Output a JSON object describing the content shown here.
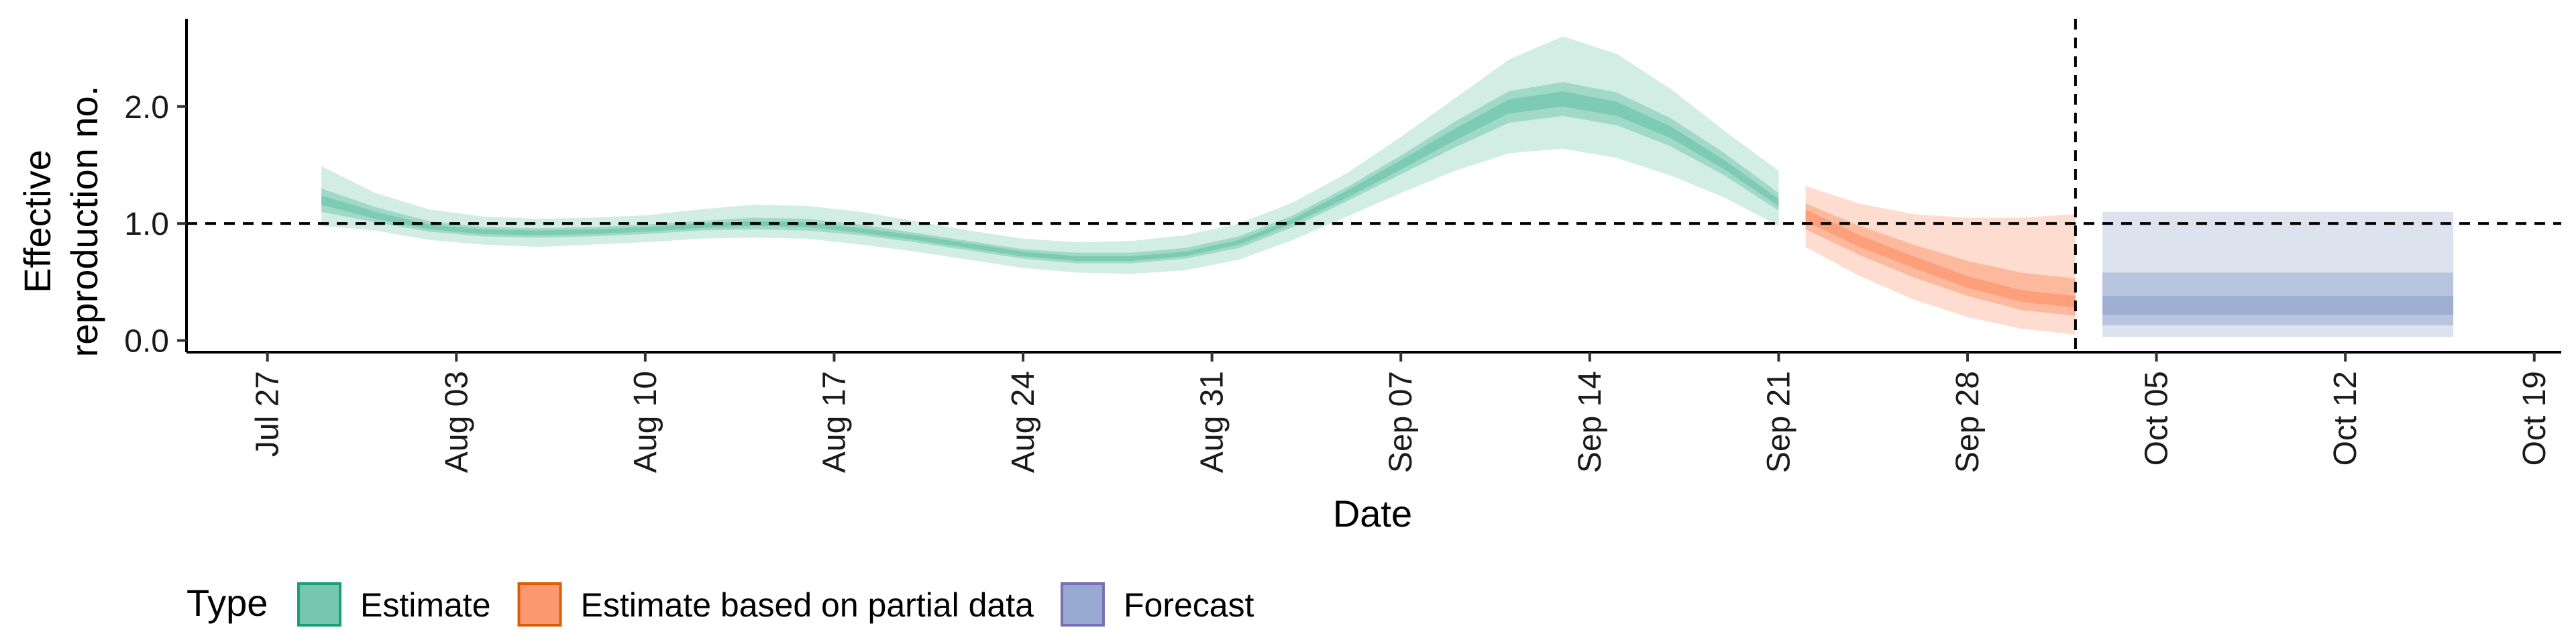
{
  "chart_data": {
    "type": "area",
    "xlabel": "Date",
    "ylabel_line1": "Effective",
    "ylabel_line2": "reproduction no.",
    "x_date_range": [
      "2021-07-24",
      "2021-10-20"
    ],
    "ylim": [
      -0.1,
      2.75
    ],
    "y_ticks": [
      {
        "value": 0.0,
        "label": "0.0"
      },
      {
        "value": 1.0,
        "label": "1.0"
      },
      {
        "value": 2.0,
        "label": "2.0"
      }
    ],
    "x_ticks": [
      {
        "date": "2021-07-27",
        "label": "Jul 27"
      },
      {
        "date": "2021-08-03",
        "label": "Aug 03"
      },
      {
        "date": "2021-08-10",
        "label": "Aug 10"
      },
      {
        "date": "2021-08-17",
        "label": "Aug 17"
      },
      {
        "date": "2021-08-24",
        "label": "Aug 24"
      },
      {
        "date": "2021-08-31",
        "label": "Aug 31"
      },
      {
        "date": "2021-09-07",
        "label": "Sep 07"
      },
      {
        "date": "2021-09-14",
        "label": "Sep 14"
      },
      {
        "date": "2021-09-21",
        "label": "Sep 21"
      },
      {
        "date": "2021-09-28",
        "label": "Sep 28"
      },
      {
        "date": "2021-10-05",
        "label": "Oct 05"
      },
      {
        "date": "2021-10-12",
        "label": "Oct 12"
      },
      {
        "date": "2021-10-19",
        "label": "Oct 19"
      }
    ],
    "reference_hline": 1.0,
    "reference_vline_date": "2021-10-02",
    "grid": false,
    "legend_position": "bottom-left",
    "legend_title": "Type",
    "series": [
      {
        "name": "Estimate",
        "fill": "#66C2A5",
        "stroke": "#1B9E77",
        "points": [
          {
            "date": "2021-07-29",
            "median": 1.2,
            "i20": [
              1.16,
              1.24
            ],
            "i50": [
              1.1,
              1.3
            ],
            "i90": [
              0.98,
              1.49
            ]
          },
          {
            "date": "2021-07-31",
            "median": 1.07,
            "i20": [
              1.04,
              1.1
            ],
            "i50": [
              1.01,
              1.14
            ],
            "i90": [
              0.94,
              1.26
            ]
          },
          {
            "date": "2021-08-02",
            "median": 0.97,
            "i20": [
              0.95,
              0.99
            ],
            "i50": [
              0.93,
              1.02
            ],
            "i90": [
              0.86,
              1.12
            ]
          },
          {
            "date": "2021-08-04",
            "median": 0.93,
            "i20": [
              0.91,
              0.95
            ],
            "i50": [
              0.89,
              0.97
            ],
            "i90": [
              0.82,
              1.06
            ]
          },
          {
            "date": "2021-08-06",
            "median": 0.92,
            "i20": [
              0.9,
              0.94
            ],
            "i50": [
              0.88,
              0.96
            ],
            "i90": [
              0.8,
              1.04
            ]
          },
          {
            "date": "2021-08-08",
            "median": 0.93,
            "i20": [
              0.91,
              0.95
            ],
            "i50": [
              0.89,
              0.97
            ],
            "i90": [
              0.82,
              1.05
            ]
          },
          {
            "date": "2021-08-10",
            "median": 0.95,
            "i20": [
              0.93,
              0.97
            ],
            "i50": [
              0.91,
              0.99
            ],
            "i90": [
              0.84,
              1.07
            ]
          },
          {
            "date": "2021-08-12",
            "median": 0.98,
            "i20": [
              0.96,
              1.0
            ],
            "i50": [
              0.94,
              1.02
            ],
            "i90": [
              0.87,
              1.12
            ]
          },
          {
            "date": "2021-08-14",
            "median": 1.0,
            "i20": [
              0.98,
              1.02
            ],
            "i50": [
              0.95,
              1.05
            ],
            "i90": [
              0.88,
              1.16
            ]
          },
          {
            "date": "2021-08-16",
            "median": 0.99,
            "i20": [
              0.97,
              1.01
            ],
            "i50": [
              0.94,
              1.04
            ],
            "i90": [
              0.87,
              1.15
            ]
          },
          {
            "date": "2021-08-18",
            "median": 0.94,
            "i20": [
              0.92,
              0.96
            ],
            "i50": [
              0.9,
              0.99
            ],
            "i90": [
              0.82,
              1.1
            ]
          },
          {
            "date": "2021-08-20",
            "median": 0.88,
            "i20": [
              0.86,
              0.9
            ],
            "i50": [
              0.84,
              0.92
            ],
            "i90": [
              0.76,
              1.02
            ]
          },
          {
            "date": "2021-08-22",
            "median": 0.81,
            "i20": [
              0.79,
              0.83
            ],
            "i50": [
              0.77,
              0.85
            ],
            "i90": [
              0.69,
              0.94
            ]
          },
          {
            "date": "2021-08-24",
            "median": 0.74,
            "i20": [
              0.72,
              0.76
            ],
            "i50": [
              0.7,
              0.78
            ],
            "i90": [
              0.62,
              0.87
            ]
          },
          {
            "date": "2021-08-26",
            "median": 0.7,
            "i20": [
              0.68,
              0.72
            ],
            "i50": [
              0.66,
              0.75
            ],
            "i90": [
              0.58,
              0.84
            ]
          },
          {
            "date": "2021-08-28",
            "median": 0.7,
            "i20": [
              0.68,
              0.72
            ],
            "i50": [
              0.66,
              0.75
            ],
            "i90": [
              0.57,
              0.85
            ]
          },
          {
            "date": "2021-08-30",
            "median": 0.74,
            "i20": [
              0.72,
              0.76
            ],
            "i50": [
              0.7,
              0.79
            ],
            "i90": [
              0.6,
              0.9
            ]
          },
          {
            "date": "2021-09-01",
            "median": 0.84,
            "i20": [
              0.82,
              0.86
            ],
            "i50": [
              0.79,
              0.89
            ],
            "i90": [
              0.69,
              1.0
            ]
          },
          {
            "date": "2021-09-03",
            "median": 1.02,
            "i20": [
              1.0,
              1.04
            ],
            "i50": [
              0.97,
              1.07
            ],
            "i90": [
              0.86,
              1.18
            ]
          },
          {
            "date": "2021-09-05",
            "median": 1.25,
            "i20": [
              1.22,
              1.28
            ],
            "i50": [
              1.19,
              1.31
            ],
            "i90": [
              1.06,
              1.43
            ]
          },
          {
            "date": "2021-09-07",
            "median": 1.5,
            "i20": [
              1.46,
              1.54
            ],
            "i50": [
              1.42,
              1.58
            ],
            "i90": [
              1.26,
              1.74
            ]
          },
          {
            "date": "2021-09-09",
            "median": 1.76,
            "i20": [
              1.71,
              1.81
            ],
            "i50": [
              1.65,
              1.87
            ],
            "i90": [
              1.45,
              2.07
            ]
          },
          {
            "date": "2021-09-11",
            "median": 2.0,
            "i20": [
              1.94,
              2.06
            ],
            "i50": [
              1.86,
              2.13
            ],
            "i90": [
              1.6,
              2.4
            ]
          },
          {
            "date": "2021-09-13",
            "median": 2.07,
            "i20": [
              2.0,
              2.13
            ],
            "i50": [
              1.92,
              2.21
            ],
            "i90": [
              1.64,
              2.6
            ]
          },
          {
            "date": "2021-09-15",
            "median": 1.98,
            "i20": [
              1.92,
              2.04
            ],
            "i50": [
              1.84,
              2.12
            ],
            "i90": [
              1.56,
              2.45
            ]
          },
          {
            "date": "2021-09-17",
            "median": 1.78,
            "i20": [
              1.73,
              1.83
            ],
            "i50": [
              1.66,
              1.9
            ],
            "i90": [
              1.41,
              2.15
            ]
          },
          {
            "date": "2021-09-19",
            "median": 1.5,
            "i20": [
              1.46,
              1.54
            ],
            "i50": [
              1.41,
              1.6
            ],
            "i90": [
              1.22,
              1.79
            ]
          },
          {
            "date": "2021-09-21",
            "median": 1.18,
            "i20": [
              1.15,
              1.21
            ],
            "i50": [
              1.11,
              1.26
            ],
            "i90": [
              0.98,
              1.45
            ]
          }
        ]
      },
      {
        "name": "Estimate based on partial data",
        "fill": "#FC8D62",
        "stroke": "#D95F02",
        "points": [
          {
            "date": "2021-09-22",
            "median": 1.07,
            "i20": [
              1.02,
              1.12
            ],
            "i50": [
              0.95,
              1.17
            ],
            "i90": [
              0.8,
              1.32
            ]
          },
          {
            "date": "2021-09-24",
            "median": 0.85,
            "i20": [
              0.8,
              0.9
            ],
            "i50": [
              0.73,
              0.98
            ],
            "i90": [
              0.55,
              1.17
            ]
          },
          {
            "date": "2021-09-26",
            "median": 0.67,
            "i20": [
              0.62,
              0.72
            ],
            "i50": [
              0.54,
              0.82
            ],
            "i90": [
              0.35,
              1.08
            ]
          },
          {
            "date": "2021-09-28",
            "median": 0.5,
            "i20": [
              0.45,
              0.55
            ],
            "i50": [
              0.38,
              0.68
            ],
            "i90": [
              0.2,
              1.05
            ]
          },
          {
            "date": "2021-09-30",
            "median": 0.38,
            "i20": [
              0.33,
              0.43
            ],
            "i50": [
              0.26,
              0.58
            ],
            "i90": [
              0.1,
              1.05
            ]
          },
          {
            "date": "2021-10-02",
            "median": 0.33,
            "i20": [
              0.28,
              0.38
            ],
            "i50": [
              0.21,
              0.53
            ],
            "i90": [
              0.05,
              1.08
            ]
          }
        ]
      },
      {
        "name": "Forecast",
        "fill": "#8DA0CB",
        "stroke": "#7570B3",
        "points": [
          {
            "date": "2021-10-03",
            "median": 0.3,
            "i20": [
              0.22,
              0.38
            ],
            "i50": [
              0.13,
              0.58
            ],
            "i90": [
              0.03,
              1.1
            ]
          },
          {
            "date": "2021-10-16",
            "median": 0.3,
            "i20": [
              0.22,
              0.38
            ],
            "i50": [
              0.13,
              0.58
            ],
            "i90": [
              0.03,
              1.1
            ]
          }
        ]
      }
    ]
  }
}
